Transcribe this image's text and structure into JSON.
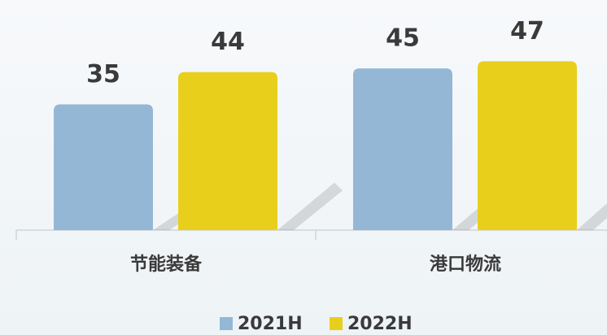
{
  "chart_data": {
    "type": "bar",
    "categories": [
      "节能装备",
      "港口物流"
    ],
    "series": [
      {
        "name": "2021H",
        "color": "#95b7d6",
        "values": [
          35,
          45
        ]
      },
      {
        "name": "2022H",
        "color": "#e8cf1c",
        "values": [
          44,
          47
        ]
      }
    ],
    "ylim": [
      0,
      55
    ]
  }
}
